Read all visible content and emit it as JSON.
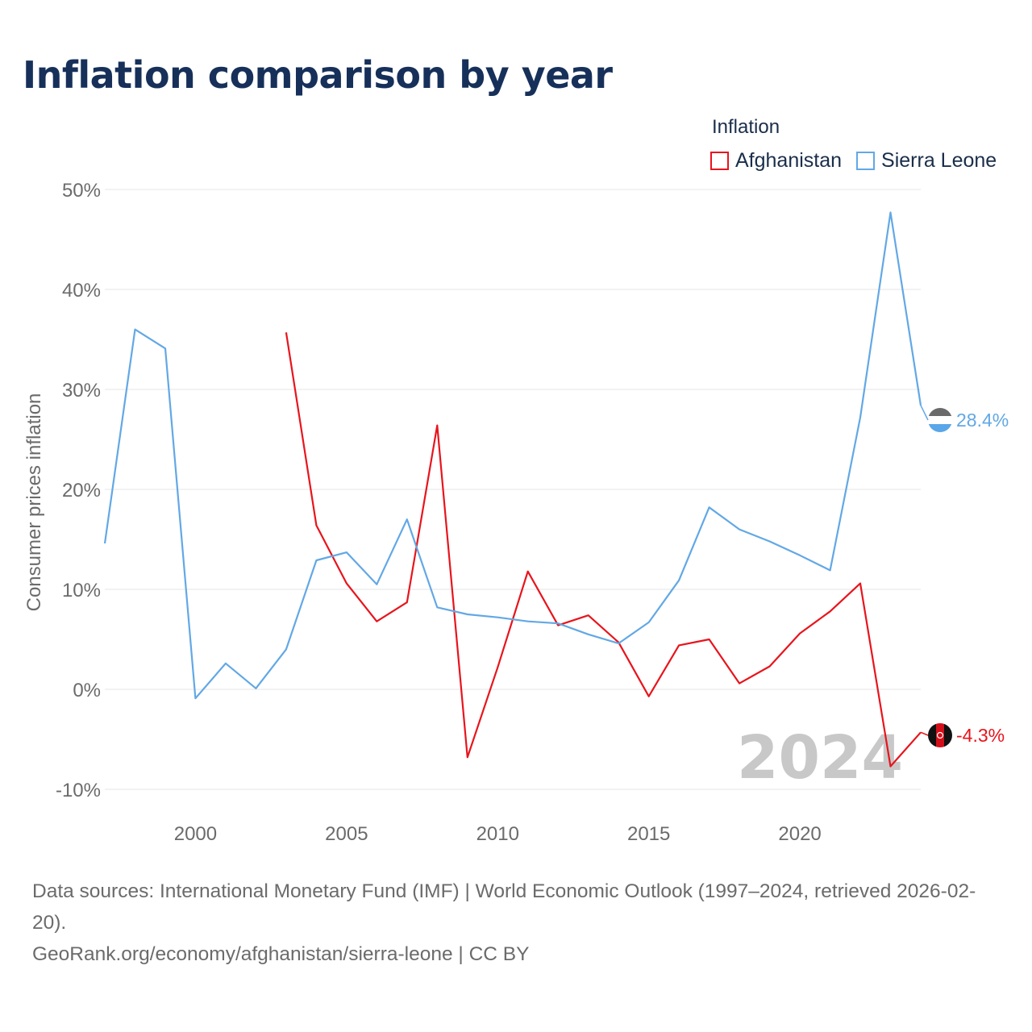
{
  "title": "Inflation comparison by year",
  "legend": {
    "title": "Inflation",
    "items": [
      {
        "label": "Afghanistan",
        "color": "#e8141c"
      },
      {
        "label": "Sierra Leone",
        "color": "#62a8e5"
      }
    ]
  },
  "footer": {
    "sources": "Data sources: International Monetary Fund (IMF) | World Economic Outlook (1997–2024, retrieved 2026-02-20).",
    "url": "GeoRank.org/economy/afghanistan/sierra-leone | CC BY"
  },
  "watermark_year": "2024",
  "chart_data": {
    "type": "line",
    "ylabel": "Consumer prices inflation",
    "xlabel": "",
    "xlim": [
      1997,
      2024
    ],
    "ylim": [
      -12.5,
      50
    ],
    "y_ticks": [
      -10,
      0,
      10,
      20,
      30,
      40,
      50
    ],
    "y_tick_labels": [
      "-10%",
      "0%",
      "10%",
      "20%",
      "30%",
      "40%",
      "50%"
    ],
    "x_ticks": [
      2000,
      2005,
      2010,
      2015,
      2020
    ],
    "x_tick_labels": [
      "2000",
      "2005",
      "2010",
      "2015",
      "2020"
    ],
    "grid": true,
    "series": [
      {
        "name": "Afghanistan",
        "color": "#e8141c",
        "end_label": "-4.3%",
        "x": [
          2003,
          2004,
          2005,
          2006,
          2007,
          2008,
          2009,
          2010,
          2011,
          2012,
          2013,
          2014,
          2015,
          2016,
          2017,
          2018,
          2019,
          2020,
          2021,
          2022,
          2023,
          2024
        ],
        "values": [
          35.7,
          16.4,
          10.6,
          6.8,
          8.7,
          26.4,
          -6.8,
          2.2,
          11.8,
          6.4,
          7.4,
          4.7,
          -0.7,
          4.4,
          5.0,
          0.6,
          2.3,
          5.6,
          7.8,
          10.6,
          -7.7,
          -4.3
        ]
      },
      {
        "name": "Sierra Leone",
        "color": "#62a8e5",
        "end_label": "28.4%",
        "x": [
          1997,
          1998,
          1999,
          2000,
          2001,
          2002,
          2003,
          2004,
          2005,
          2006,
          2007,
          2008,
          2009,
          2010,
          2011,
          2012,
          2013,
          2014,
          2015,
          2016,
          2017,
          2018,
          2019,
          2020,
          2021,
          2022,
          2023,
          2024
        ],
        "values": [
          14.6,
          36.0,
          34.1,
          -0.9,
          2.6,
          0.1,
          4.0,
          12.9,
          13.7,
          10.5,
          17.0,
          8.2,
          7.5,
          7.2,
          6.8,
          6.6,
          5.5,
          4.6,
          6.7,
          10.9,
          18.2,
          16.0,
          14.8,
          13.4,
          11.9,
          27.2,
          47.7,
          28.4
        ]
      }
    ]
  }
}
